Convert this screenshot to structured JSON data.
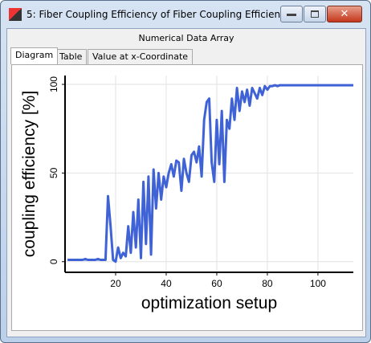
{
  "window": {
    "title": "5: Fiber Coupling Efficiency of Fiber Coupling Efficien...",
    "subtitle": "Numerical Data Array",
    "tabs": [
      "Diagram",
      "Table",
      "Value at x-Coordinate"
    ]
  },
  "chart_data": {
    "type": "line",
    "x_label": "optimization setup",
    "y_label": "coupling efficiency [%]",
    "color": "#3f63d6",
    "grid": true,
    "xlim": [
      0,
      114
    ],
    "xticks": [
      20,
      40,
      60,
      80,
      100
    ],
    "ylim": [
      -6,
      105
    ],
    "yticks": [
      0,
      50,
      100
    ],
    "x": [
      1,
      2,
      3,
      4,
      5,
      6,
      7,
      8,
      9,
      10,
      11,
      12,
      13,
      14,
      15,
      16,
      17,
      18,
      19,
      20,
      21,
      22,
      23,
      24,
      25,
      26,
      27,
      28,
      29,
      30,
      31,
      32,
      33,
      34,
      35,
      36,
      37,
      38,
      39,
      40,
      41,
      42,
      43,
      44,
      45,
      46,
      47,
      48,
      49,
      50,
      51,
      52,
      53,
      54,
      55,
      56,
      57,
      58,
      59,
      60,
      61,
      62,
      63,
      64,
      65,
      66,
      67,
      68,
      69,
      70,
      71,
      72,
      73,
      74,
      75,
      76,
      77,
      78,
      79,
      80,
      81,
      82,
      83,
      84,
      85,
      86,
      87,
      88,
      89,
      90,
      91,
      92,
      93,
      94,
      95,
      96,
      97,
      98,
      99,
      100,
      101,
      102,
      103,
      104,
      105,
      106,
      107,
      108,
      109,
      110,
      111,
      112,
      113,
      114
    ],
    "values": [
      1,
      1,
      1,
      1,
      1,
      1,
      1,
      1.5,
      1,
      1,
      1,
      1,
      1.5,
      1,
      1,
      1,
      37,
      20,
      1,
      0,
      8,
      2,
      5,
      3,
      20,
      5,
      28,
      8,
      35,
      2,
      45,
      10,
      48,
      4,
      52,
      30,
      50,
      35,
      48,
      42,
      50,
      55,
      48,
      57,
      56,
      40,
      58,
      50,
      45,
      60,
      62,
      56,
      65,
      48,
      80,
      90,
      92,
      56,
      45,
      80,
      55,
      85,
      45,
      80,
      75,
      92,
      80,
      98,
      85,
      96,
      90,
      97,
      88,
      98,
      95,
      92,
      98,
      94,
      99,
      97,
      99,
      99,
      99.5,
      99,
      99.5,
      99.5,
      99.5,
      99.5,
      99.5,
      99.5,
      99.5,
      99.5,
      99.5,
      99.5,
      99.5,
      99.5,
      99.5,
      99.5,
      99.5,
      99.5,
      99.5,
      99.5,
      99.5,
      99.5,
      99.5,
      99.5,
      99.5,
      99.5,
      99.5,
      99.5,
      99.5,
      99.5,
      99.5,
      99.5
    ]
  }
}
